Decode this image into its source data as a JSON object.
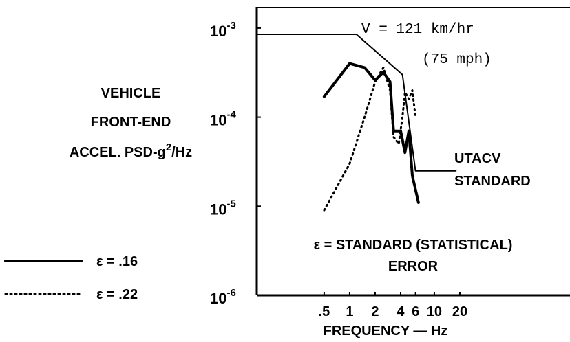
{
  "chart_data": {
    "type": "line",
    "log_x": true,
    "log_y": true,
    "x_label": "FREQUENCY — Hz",
    "y_label": {
      "lines": [
        "VEHICLE",
        "FRONT-END"
      ],
      "last": [
        "ACCEL. PSD-g",
        "2",
        "/Hz"
      ]
    },
    "xlim": [
      0.08,
      400
    ],
    "ylim": [
      1e-06,
      0.0017
    ],
    "xticks": [
      {
        "value": 0.5,
        "label": ".5"
      },
      1,
      2,
      4,
      6,
      10,
      20
    ],
    "yticks": [
      {
        "value": 0.001,
        "label": "10",
        "exponent": "-3"
      },
      {
        "value": 0.0001,
        "label": "10",
        "exponent": "-4"
      },
      {
        "value": 1e-05,
        "label": "10",
        "exponent": "-5"
      },
      {
        "value": 1e-06,
        "label": "10",
        "exponent": "-6"
      }
    ],
    "series": [
      {
        "style": "thin",
        "color": "#000",
        "x": [
          0.08,
          1.2,
          4.2,
          6,
          18
        ],
        "values": [
          0.00085,
          0.00085,
          0.0003,
          2.5e-05,
          2.5e-05
        ]
      },
      {
        "name": "ε = .16",
        "style": "solid",
        "color": "#000",
        "x": [
          0.5,
          1,
          1.5,
          2,
          2.5,
          3,
          3.3,
          4,
          4.5,
          5,
          5.5,
          6.5
        ],
        "values": [
          0.00017,
          0.0004,
          0.00036,
          0.00026,
          0.00032,
          0.00025,
          7e-05,
          7e-05,
          4e-05,
          7e-05,
          2.2e-05,
          1.1e-05
        ]
      },
      {
        "name": "ε = .22",
        "style": "dotted",
        "color": "#000",
        "x": [
          0.5,
          1,
          1.5,
          2,
          2.5,
          3,
          3.3,
          3.8,
          4.2,
          4.5,
          5,
          5.5,
          6
        ],
        "values": [
          9e-06,
          3e-05,
          0.0001,
          0.00025,
          0.00036,
          0.0002,
          6e-05,
          5e-05,
          0.0001,
          0.00019,
          0.00016,
          0.0002,
          0.0001
        ]
      }
    ],
    "annotations": [
      "V = 121 km/hr",
      "(75 mph)",
      "UTACV",
      "STANDARD",
      "ε = STANDARD (STATISTICAL)",
      "ERROR"
    ]
  }
}
